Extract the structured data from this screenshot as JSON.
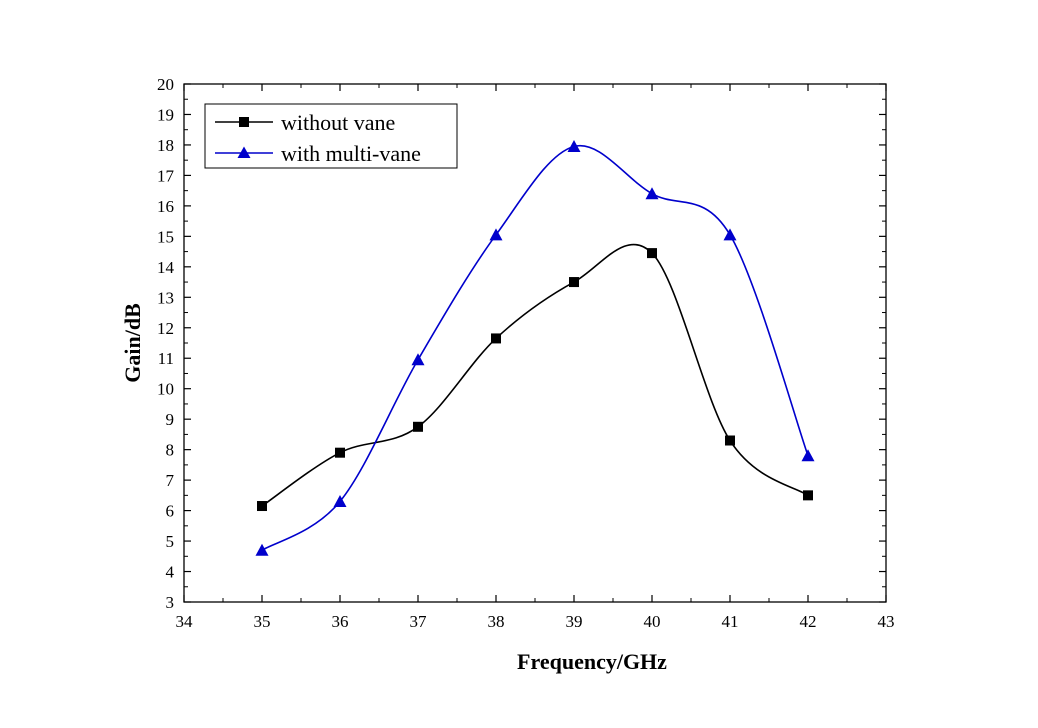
{
  "chart_data": {
    "type": "line",
    "xlabel": "Frequency/GHz",
    "ylabel": "Gain/dB",
    "xlim": [
      34,
      43
    ],
    "ylim": [
      3,
      20
    ],
    "x_ticks": [
      "34",
      "35",
      "36",
      "37",
      "38",
      "39",
      "40",
      "41",
      "42",
      "43"
    ],
    "y_ticks": [
      "3",
      "4",
      "5",
      "6",
      "7",
      "8",
      "9",
      "10",
      "11",
      "12",
      "13",
      "14",
      "15",
      "16",
      "17",
      "18",
      "19",
      "20"
    ],
    "grid": false,
    "legend_position": "top-left",
    "smooth": true,
    "series": [
      {
        "name": "without vane",
        "marker": "square",
        "color": "#000000",
        "x": [
          35,
          36,
          37,
          38,
          39,
          40,
          41,
          42
        ],
        "y": [
          6.15,
          7.9,
          8.75,
          11.65,
          13.5,
          14.45,
          8.3,
          6.5
        ]
      },
      {
        "name": "with multi-vane",
        "marker": "triangle",
        "color": "#0000cc",
        "x": [
          35,
          36,
          37,
          38,
          39,
          40,
          41,
          42
        ],
        "y": [
          4.7,
          6.3,
          10.95,
          15.05,
          17.95,
          16.4,
          15.05,
          7.8
        ]
      }
    ]
  }
}
